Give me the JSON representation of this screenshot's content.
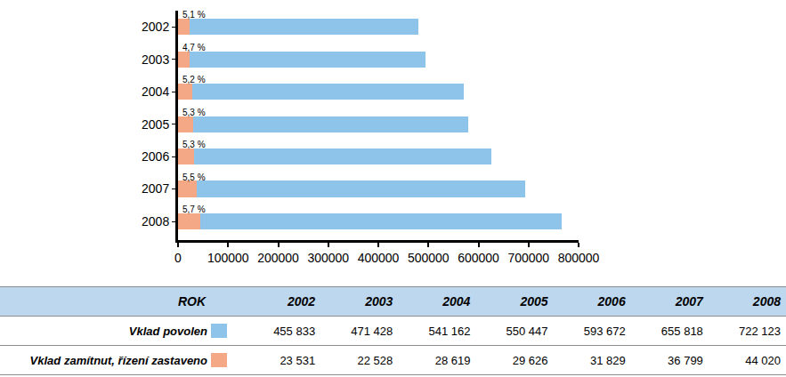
{
  "chart_data": {
    "type": "bar",
    "orientation": "horizontal",
    "stacked": true,
    "categories": [
      "2002",
      "2003",
      "2004",
      "2005",
      "2006",
      "2007",
      "2008"
    ],
    "series": [
      {
        "name": "Vklad zamítnut, řízení zastaveno",
        "color": "#f4a886",
        "values": [
          23531,
          22528,
          28619,
          29626,
          31829,
          36799,
          44020
        ],
        "value_labels": [
          "23 531",
          "22 528",
          "28 619",
          "29 626",
          "31 829",
          "36 799",
          "44 020"
        ]
      },
      {
        "name": "Vklad povolen",
        "color": "#8ec3ea",
        "values": [
          455833,
          471428,
          541162,
          550447,
          593672,
          655818,
          722123
        ],
        "value_labels": [
          "455 833",
          "471 428",
          "541 162",
          "550 447",
          "593 672",
          "655 818",
          "722 123"
        ]
      }
    ],
    "annotations": [
      "5,1 %",
      "4,7 %",
      "5,2 %",
      "5,3 %",
      "5,3 %",
      "5,5 %",
      "5,7 %"
    ],
    "table_header": "ROK",
    "xlim": [
      0,
      800000
    ],
    "xticks": [
      0,
      100000,
      200000,
      300000,
      400000,
      500000,
      600000,
      700000,
      800000
    ],
    "grid": false
  }
}
